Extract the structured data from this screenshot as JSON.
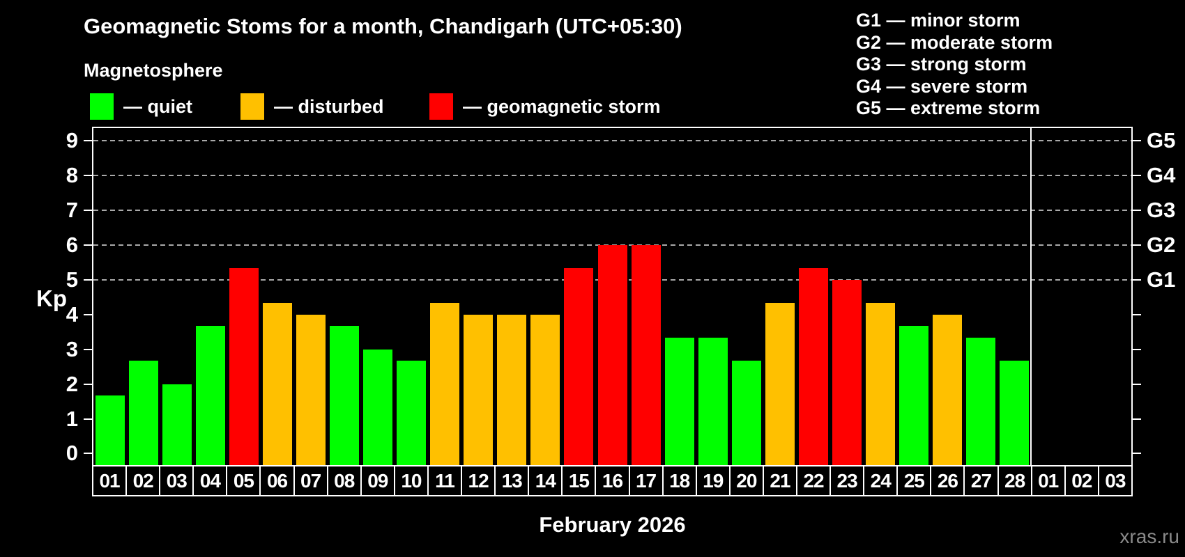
{
  "header": {
    "title": "Geomagnetic Stoms for a month, Chandigarh (UTC+05:30)",
    "subtitle": "Magnetosphere"
  },
  "legend": {
    "items": [
      {
        "status": "quiet",
        "label": "— quiet"
      },
      {
        "status": "disturbed",
        "label": "— disturbed"
      },
      {
        "status": "storm",
        "label": "— geomagnetic storm"
      }
    ]
  },
  "storm_scale_legend": [
    "G1 — minor storm",
    "G2 — moderate storm",
    "G3 — strong storm",
    "G4 — severe storm",
    "G5 — extreme storm"
  ],
  "watermark": "xras.ru",
  "chart_data": {
    "type": "bar",
    "title": "Geomagnetic Stoms for a month, Chandigarh (UTC+05:30)",
    "xlabel": "February 2026",
    "ylabel": "Kp",
    "ylim": [
      0,
      9
    ],
    "grid": "dashed horizontal lines at Kp 5,6,7,8,9",
    "legend_position": "top-left",
    "y_ticks": [
      "0",
      "1",
      "2",
      "3",
      "4",
      "5",
      "6",
      "7",
      "8",
      "9"
    ],
    "right_axis_labels": [
      {
        "kp": 5,
        "label": "G1"
      },
      {
        "kp": 6,
        "label": "G2"
      },
      {
        "kp": 7,
        "label": "G3"
      },
      {
        "kp": 8,
        "label": "G4"
      },
      {
        "kp": 9,
        "label": "G5"
      }
    ],
    "status_colors": {
      "quiet": "#00ff00",
      "disturbed": "#ffc000",
      "storm": "#ff0000"
    },
    "days": [
      {
        "day": "01",
        "kp": 1.67,
        "status": "quiet"
      },
      {
        "day": "02",
        "kp": 2.67,
        "status": "quiet"
      },
      {
        "day": "03",
        "kp": 2.0,
        "status": "quiet"
      },
      {
        "day": "04",
        "kp": 3.67,
        "status": "quiet"
      },
      {
        "day": "05",
        "kp": 5.33,
        "status": "storm"
      },
      {
        "day": "06",
        "kp": 4.33,
        "status": "disturbed"
      },
      {
        "day": "07",
        "kp": 4.0,
        "status": "disturbed"
      },
      {
        "day": "08",
        "kp": 3.67,
        "status": "quiet"
      },
      {
        "day": "09",
        "kp": 3.0,
        "status": "quiet"
      },
      {
        "day": "10",
        "kp": 2.67,
        "status": "quiet"
      },
      {
        "day": "11",
        "kp": 4.33,
        "status": "disturbed"
      },
      {
        "day": "12",
        "kp": 4.0,
        "status": "disturbed"
      },
      {
        "day": "13",
        "kp": 4.0,
        "status": "disturbed"
      },
      {
        "day": "14",
        "kp": 4.0,
        "status": "disturbed"
      },
      {
        "day": "15",
        "kp": 5.33,
        "status": "storm"
      },
      {
        "day": "16",
        "kp": 6.0,
        "status": "storm"
      },
      {
        "day": "17",
        "kp": 6.0,
        "status": "storm"
      },
      {
        "day": "18",
        "kp": 3.33,
        "status": "quiet"
      },
      {
        "day": "19",
        "kp": 3.33,
        "status": "quiet"
      },
      {
        "day": "20",
        "kp": 2.67,
        "status": "quiet"
      },
      {
        "day": "21",
        "kp": 4.33,
        "status": "disturbed"
      },
      {
        "day": "22",
        "kp": 5.33,
        "status": "storm"
      },
      {
        "day": "23",
        "kp": 5.0,
        "status": "storm"
      },
      {
        "day": "24",
        "kp": 4.33,
        "status": "disturbed"
      },
      {
        "day": "25",
        "kp": 3.67,
        "status": "quiet"
      },
      {
        "day": "26",
        "kp": 4.0,
        "status": "disturbed"
      },
      {
        "day": "27",
        "kp": 3.33,
        "status": "quiet"
      },
      {
        "day": "28",
        "kp": 2.67,
        "status": "quiet"
      }
    ],
    "next_month_days": [
      "01",
      "02",
      "03"
    ]
  }
}
